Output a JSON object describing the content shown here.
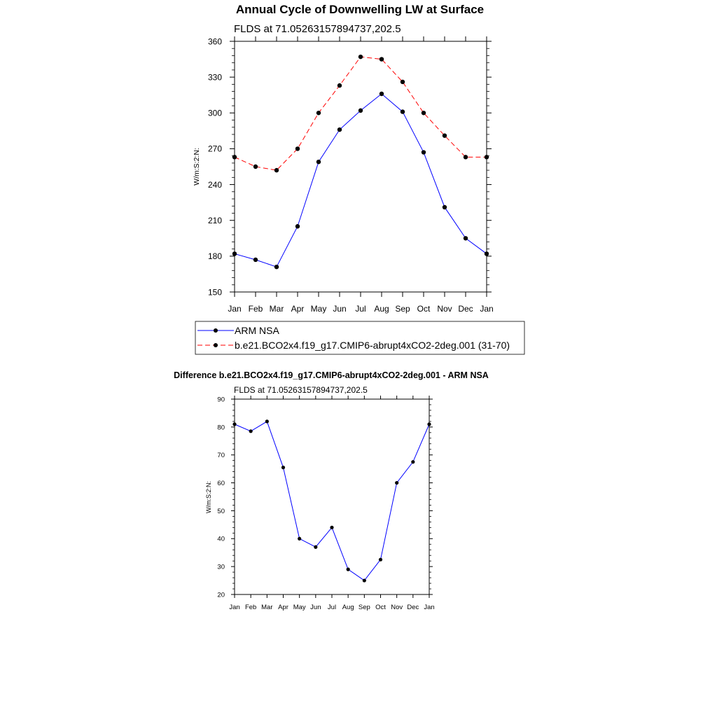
{
  "chart_data": [
    {
      "type": "line",
      "title": "Annual Cycle of Downwelling LW at Surface",
      "subtitle": "FLDS at 71.05263157894737,202.5",
      "ylabel": "W/m:S:2:N:",
      "xlabel": "",
      "categories": [
        "Jan",
        "Feb",
        "Mar",
        "Apr",
        "May",
        "Jun",
        "Jul",
        "Aug",
        "Sep",
        "Oct",
        "Nov",
        "Dec",
        "Jan"
      ],
      "ylim": [
        150,
        360
      ],
      "yticks": [
        150,
        180,
        210,
        240,
        270,
        300,
        330,
        360
      ],
      "series": [
        {
          "name": "ARM NSA",
          "color": "#0000ff",
          "style": "solid",
          "values": [
            182,
            177,
            171,
            205,
            259,
            286,
            302,
            316,
            301,
            267,
            221,
            195,
            182
          ]
        },
        {
          "name": "b.e21.BCO2x4.f19_g17.CMIP6-abrupt4xCO2-2deg.001 (31-70)",
          "color": "#ff0000",
          "style": "dashed",
          "values": [
            263,
            255,
            252,
            270,
            300,
            323,
            347,
            345,
            326,
            300,
            281,
            263,
            263
          ]
        }
      ],
      "legend": "bottom"
    },
    {
      "type": "line",
      "title": "Difference b.e21.BCO2x4.f19_g17.CMIP6-abrupt4xCO2-2deg.001 - ARM NSA",
      "subtitle": "FLDS at 71.05263157894737,202.5",
      "ylabel": "W/m:S:2:N:",
      "xlabel": "",
      "categories": [
        "Jan",
        "Feb",
        "Mar",
        "Apr",
        "May",
        "Jun",
        "Jul",
        "Aug",
        "Sep",
        "Oct",
        "Nov",
        "Dec",
        "Jan"
      ],
      "ylim": [
        20,
        90
      ],
      "yticks": [
        20,
        30,
        40,
        50,
        60,
        70,
        80,
        90
      ],
      "series": [
        {
          "name": "Difference",
          "color": "#0000ff",
          "style": "solid",
          "values": [
            81,
            78.5,
            82,
            65.5,
            40,
            37,
            44,
            29,
            25,
            32.5,
            60,
            67.5,
            81
          ]
        }
      ]
    }
  ]
}
